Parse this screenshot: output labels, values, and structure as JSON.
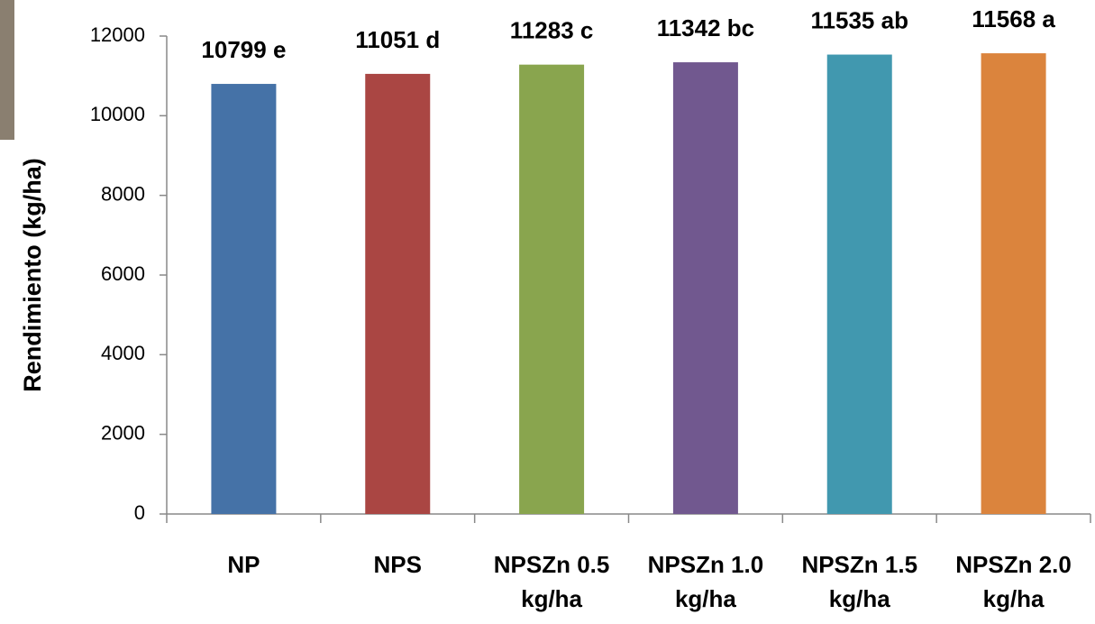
{
  "chart_data": {
    "type": "bar",
    "y_label": "Rendimiento (kg/ha)",
    "categories": [
      "NP",
      "NPS",
      "NPSZn 0.5 kg/ha",
      "NPSZn 1.0 kg/ha",
      "NPSZn 1.5 kg/ha",
      "NPSZn 2.0 kg/ha"
    ],
    "values": [
      10799,
      11051,
      11283,
      11342,
      11535,
      11568
    ],
    "value_labels": [
      "10799 e",
      "11051 d",
      "11283 c",
      "11342 bc",
      "11535 ab",
      "11568 a"
    ],
    "colors": [
      "#4572a7",
      "#aa4643",
      "#89a54e",
      "#71588f",
      "#4198af",
      "#db843d"
    ],
    "ylim": [
      0,
      12000
    ],
    "yticks": [
      0,
      2000,
      4000,
      6000,
      8000,
      10000,
      12000
    ],
    "grid": false
  }
}
